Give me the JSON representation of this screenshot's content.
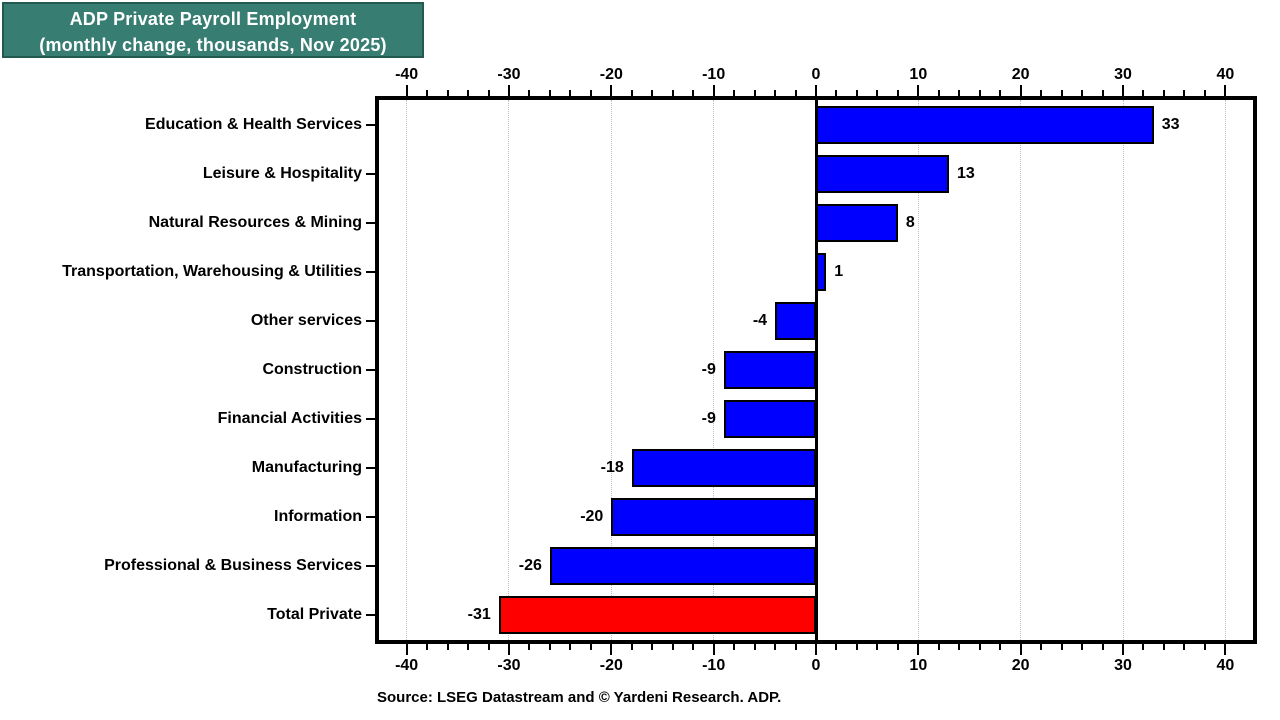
{
  "title_box": {
    "line1": "ADP Private Payroll Employment",
    "line2": "(monthly change, thousands, Nov 2025)",
    "bg_color": "#377D71",
    "border_color": "#235A50",
    "text_color": "#FFFFFF"
  },
  "source_note": "Source: LSEG Datastream and © Yardeni Research. ADP.",
  "chart_data": {
    "type": "bar",
    "orientation": "horizontal",
    "title": "ADP Private Payroll Employment (monthly change, thousands, Nov 2025)",
    "xlabel": "",
    "ylabel": "",
    "categories": [
      "Education & Health Services",
      "Leisure & Hospitality",
      "Natural Resources & Mining",
      "Transportation, Warehousing & Utilities",
      "Other services",
      "Construction",
      "Financial Activities",
      "Manufacturing",
      "Information",
      "Professional & Business Services",
      "Total Private"
    ],
    "values": [
      33,
      13,
      8,
      1,
      -4,
      -9,
      -9,
      -18,
      -20,
      -26,
      -31
    ],
    "bar_colors": [
      "#0000FF",
      "#0000FF",
      "#0000FF",
      "#0000FF",
      "#0000FF",
      "#0000FF",
      "#0000FF",
      "#0000FF",
      "#0000FF",
      "#0000FF",
      "#FF0000"
    ],
    "value_labels": [
      "33",
      "13",
      "8",
      "1",
      "-4",
      "-9",
      "-9",
      "-18",
      "-20",
      "-26",
      "-31"
    ],
    "xlim": [
      -42.7,
      42.7
    ],
    "x_major_ticks": [
      -40,
      -30,
      -20,
      -10,
      0,
      10,
      20,
      30,
      40
    ],
    "x_major_tick_labels": [
      "-40",
      "-30",
      "-20",
      "-10",
      "0",
      "10",
      "20",
      "30",
      "40"
    ],
    "x_minor_tick_step": 2,
    "grid": "vertical dotted gridlines at major ticks, solid black line at zero",
    "legend": "none",
    "axis_label_position": "top and bottom",
    "grid_color": "#BFBFBF",
    "zero_line_color": "#000000"
  }
}
